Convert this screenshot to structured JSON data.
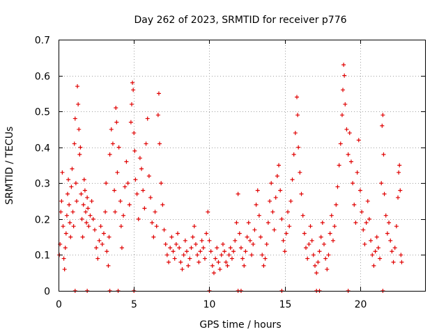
{
  "chart_data": {
    "type": "scatter",
    "title": "Day 262 of 2023, SRMTID for receiver p776",
    "xlabel": "GPS time / hours",
    "ylabel": "SRMTID / TECUs",
    "xlim": [
      0,
      24.3
    ],
    "ylim": [
      0,
      0.7
    ],
    "x_ticks": [
      0,
      5,
      10,
      15,
      20
    ],
    "x_tick_labels": [
      "0",
      "5",
      "10",
      "15",
      "20"
    ],
    "y_ticks": [
      0,
      0.1,
      0.2,
      0.3,
      0.4,
      0.5,
      0.6,
      0.7
    ],
    "y_tick_labels": [
      "0",
      "0.1",
      "0.2",
      "0.3",
      "0.4",
      "0.5",
      "0.6",
      "0.7"
    ],
    "grid": true,
    "marker": "+",
    "color": "#e00000",
    "series": [
      {
        "name": "SRMTID",
        "points": [
          [
            0.05,
            0.1
          ],
          [
            0.1,
            0.13
          ],
          [
            0.15,
            0.22
          ],
          [
            0.2,
            0.25
          ],
          [
            0.25,
            0.33
          ],
          [
            0.3,
            0.18
          ],
          [
            0.35,
            0.09
          ],
          [
            0.4,
            0.06
          ],
          [
            0.45,
            0.12
          ],
          [
            0.5,
            0.16
          ],
          [
            0.55,
            0.21
          ],
          [
            0.6,
            0.27
          ],
          [
            0.65,
            0.31
          ],
          [
            0.7,
            0.24
          ],
          [
            0.75,
            0.19
          ],
          [
            0.8,
            0.15
          ],
          [
            0.85,
            0.29
          ],
          [
            0.9,
            0.34
          ],
          [
            0.95,
            0.22
          ],
          [
            1.0,
            0.18
          ],
          [
            1.05,
            0.41
          ],
          [
            1.1,
            0.48
          ],
          [
            1.15,
            0.3
          ],
          [
            1.2,
            0.25
          ],
          [
            1.25,
            0.57
          ],
          [
            1.3,
            0.52
          ],
          [
            1.35,
            0.45
          ],
          [
            1.4,
            0.38
          ],
          [
            1.45,
            0.4
          ],
          [
            1.5,
            0.27
          ],
          [
            1.55,
            0.2
          ],
          [
            1.6,
            0.15
          ],
          [
            1.65,
            0.24
          ],
          [
            1.7,
            0.31
          ],
          [
            1.75,
            0.28
          ],
          [
            1.8,
            0.22
          ],
          [
            1.85,
            0.19
          ],
          [
            1.9,
            0.26
          ],
          [
            1.95,
            0.23
          ],
          [
            2.0,
            0.18
          ],
          [
            2.1,
            0.21
          ],
          [
            2.2,
            0.25
          ],
          [
            2.3,
            0.2
          ],
          [
            2.4,
            0.17
          ],
          [
            2.5,
            0.12
          ],
          [
            2.6,
            0.09
          ],
          [
            2.7,
            0.14
          ],
          [
            2.8,
            0.18
          ],
          [
            2.9,
            0.13
          ],
          [
            3.0,
            0.16
          ],
          [
            3.1,
            0.22
          ],
          [
            3.15,
            0.3
          ],
          [
            3.2,
            0.11
          ],
          [
            3.3,
            0.07
          ],
          [
            3.35,
            0.15
          ],
          [
            3.4,
            0.38
          ],
          [
            3.5,
            0.45
          ],
          [
            3.6,
            0.41
          ],
          [
            3.7,
            0.28
          ],
          [
            3.75,
            0.22
          ],
          [
            3.8,
            0.51
          ],
          [
            3.85,
            0.47
          ],
          [
            3.9,
            0.33
          ],
          [
            4.0,
            0.4
          ],
          [
            4.1,
            0.25
          ],
          [
            4.15,
            0.18
          ],
          [
            4.2,
            0.12
          ],
          [
            4.3,
            0.21
          ],
          [
            4.4,
            0.29
          ],
          [
            4.5,
            0.36
          ],
          [
            4.6,
            0.3
          ],
          [
            4.7,
            0.24
          ],
          [
            4.8,
            0.47
          ],
          [
            4.85,
            0.52
          ],
          [
            4.9,
            0.58
          ],
          [
            4.95,
            0.56
          ],
          [
            5.0,
            0.44
          ],
          [
            5.05,
            0.39
          ],
          [
            5.1,
            0.31
          ],
          [
            5.2,
            0.27
          ],
          [
            5.3,
            0.2
          ],
          [
            5.4,
            0.37
          ],
          [
            5.5,
            0.34
          ],
          [
            5.6,
            0.28
          ],
          [
            5.7,
            0.23
          ],
          [
            5.8,
            0.41
          ],
          [
            5.9,
            0.48
          ],
          [
            6.0,
            0.32
          ],
          [
            6.1,
            0.26
          ],
          [
            6.2,
            0.19
          ],
          [
            6.3,
            0.15
          ],
          [
            6.4,
            0.22
          ],
          [
            6.5,
            0.18
          ],
          [
            6.6,
            0.49
          ],
          [
            6.65,
            0.55
          ],
          [
            6.7,
            0.41
          ],
          [
            6.8,
            0.3
          ],
          [
            6.9,
            0.24
          ],
          [
            7.0,
            0.17
          ],
          [
            7.1,
            0.13
          ],
          [
            7.2,
            0.1
          ],
          [
            7.3,
            0.08
          ],
          [
            7.4,
            0.12
          ],
          [
            7.5,
            0.15
          ],
          [
            7.6,
            0.11
          ],
          [
            7.7,
            0.09
          ],
          [
            7.8,
            0.13
          ],
          [
            7.9,
            0.16
          ],
          [
            8.0,
            0.12
          ],
          [
            8.1,
            0.08
          ],
          [
            8.2,
            0.06
          ],
          [
            8.3,
            0.1
          ],
          [
            8.4,
            0.14
          ],
          [
            8.5,
            0.11
          ],
          [
            8.6,
            0.07
          ],
          [
            8.7,
            0.09
          ],
          [
            8.8,
            0.12
          ],
          [
            8.9,
            0.15
          ],
          [
            9.0,
            0.18
          ],
          [
            9.1,
            0.13
          ],
          [
            9.2,
            0.1
          ],
          [
            9.3,
            0.08
          ],
          [
            9.4,
            0.11
          ],
          [
            9.5,
            0.14
          ],
          [
            9.6,
            0.12
          ],
          [
            9.7,
            0.09
          ],
          [
            9.8,
            0.16
          ],
          [
            9.9,
            0.22
          ],
          [
            10.0,
            0.14
          ],
          [
            10.1,
            0.11
          ],
          [
            10.2,
            0.07
          ],
          [
            10.3,
            0.05
          ],
          [
            10.4,
            0.09
          ],
          [
            10.5,
            0.12
          ],
          [
            10.6,
            0.08
          ],
          [
            10.7,
            0.06
          ],
          [
            10.8,
            0.1
          ],
          [
            10.9,
            0.13
          ],
          [
            11.0,
            0.11
          ],
          [
            11.1,
            0.08
          ],
          [
            11.2,
            0.07
          ],
          [
            11.3,
            0.1
          ],
          [
            11.4,
            0.12
          ],
          [
            11.5,
            0.09
          ],
          [
            11.6,
            0.11
          ],
          [
            11.7,
            0.14
          ],
          [
            11.8,
            0.19
          ],
          [
            11.9,
            0.27
          ],
          [
            12.0,
            0.16
          ],
          [
            12.1,
            0.12
          ],
          [
            12.2,
            0.09
          ],
          [
            12.3,
            0.07
          ],
          [
            12.4,
            0.11
          ],
          [
            12.5,
            0.15
          ],
          [
            12.6,
            0.19
          ],
          [
            12.7,
            0.14
          ],
          [
            12.8,
            0.1
          ],
          [
            12.9,
            0.13
          ],
          [
            13.0,
            0.17
          ],
          [
            13.1,
            0.24
          ],
          [
            13.2,
            0.28
          ],
          [
            13.3,
            0.21
          ],
          [
            13.4,
            0.15
          ],
          [
            13.5,
            0.1
          ],
          [
            13.6,
            0.07
          ],
          [
            13.7,
            0.09
          ],
          [
            13.8,
            0.13
          ],
          [
            13.9,
            0.19
          ],
          [
            14.0,
            0.25
          ],
          [
            14.1,
            0.3
          ],
          [
            14.2,
            0.22
          ],
          [
            14.3,
            0.17
          ],
          [
            14.4,
            0.26
          ],
          [
            14.5,
            0.32
          ],
          [
            14.6,
            0.35
          ],
          [
            14.7,
            0.28
          ],
          [
            14.8,
            0.2
          ],
          [
            14.9,
            0.14
          ],
          [
            15.0,
            0.11
          ],
          [
            15.1,
            0.16
          ],
          [
            15.2,
            0.22
          ],
          [
            15.3,
            0.18
          ],
          [
            15.4,
            0.25
          ],
          [
            15.5,
            0.31
          ],
          [
            15.6,
            0.38
          ],
          [
            15.7,
            0.44
          ],
          [
            15.8,
            0.54
          ],
          [
            15.85,
            0.49
          ],
          [
            15.9,
            0.4
          ],
          [
            16.0,
            0.33
          ],
          [
            16.1,
            0.27
          ],
          [
            16.2,
            0.21
          ],
          [
            16.3,
            0.16
          ],
          [
            16.4,
            0.12
          ],
          [
            16.5,
            0.09
          ],
          [
            16.6,
            0.13
          ],
          [
            16.7,
            0.18
          ],
          [
            16.8,
            0.14
          ],
          [
            16.9,
            0.1
          ],
          [
            17.0,
            0.07
          ],
          [
            17.1,
            0.05
          ],
          [
            17.2,
            0.08
          ],
          [
            17.3,
            0.11
          ],
          [
            17.4,
            0.15
          ],
          [
            17.5,
            0.19
          ],
          [
            17.6,
            0.13
          ],
          [
            17.7,
            0.09
          ],
          [
            17.8,
            0.06
          ],
          [
            17.9,
            0.1
          ],
          [
            18.0,
            0.16
          ],
          [
            18.1,
            0.21
          ],
          [
            18.2,
            0.14
          ],
          [
            18.3,
            0.18
          ],
          [
            18.4,
            0.24
          ],
          [
            18.5,
            0.29
          ],
          [
            18.6,
            0.35
          ],
          [
            18.7,
            0.41
          ],
          [
            18.8,
            0.49
          ],
          [
            18.85,
            0.56
          ],
          [
            18.9,
            0.63
          ],
          [
            18.95,
            0.6
          ],
          [
            19.0,
            0.52
          ],
          [
            19.1,
            0.45
          ],
          [
            19.2,
            0.38
          ],
          [
            19.3,
            0.44
          ],
          [
            19.4,
            0.36
          ],
          [
            19.5,
            0.3
          ],
          [
            19.6,
            0.24
          ],
          [
            19.7,
            0.19
          ],
          [
            19.8,
            0.33
          ],
          [
            19.9,
            0.42
          ],
          [
            20.0,
            0.28
          ],
          [
            20.1,
            0.22
          ],
          [
            20.2,
            0.17
          ],
          [
            20.3,
            0.13
          ],
          [
            20.4,
            0.19
          ],
          [
            20.5,
            0.25
          ],
          [
            20.6,
            0.2
          ],
          [
            20.7,
            0.14
          ],
          [
            20.8,
            0.1
          ],
          [
            20.9,
            0.07
          ],
          [
            21.0,
            0.11
          ],
          [
            21.1,
            0.15
          ],
          [
            21.2,
            0.12
          ],
          [
            21.3,
            0.09
          ],
          [
            21.4,
            0.3
          ],
          [
            21.45,
            0.46
          ],
          [
            21.5,
            0.49
          ],
          [
            21.55,
            0.38
          ],
          [
            21.6,
            0.27
          ],
          [
            21.7,
            0.21
          ],
          [
            21.8,
            0.16
          ],
          [
            21.9,
            0.19
          ],
          [
            22.0,
            0.14
          ],
          [
            22.1,
            0.11
          ],
          [
            22.2,
            0.08
          ],
          [
            22.3,
            0.12
          ],
          [
            22.4,
            0.18
          ],
          [
            22.5,
            0.26
          ],
          [
            22.55,
            0.33
          ],
          [
            22.6,
            0.35
          ],
          [
            22.65,
            0.28
          ],
          [
            22.7,
            0.1
          ],
          [
            22.75,
            0.08
          ]
        ],
        "zero_points": [
          1.1,
          1.9,
          3.4,
          3.95,
          5.0,
          10.0,
          11.9,
          12.1,
          14.8,
          17.1,
          17.3,
          19.2,
          21.5
        ]
      }
    ]
  }
}
